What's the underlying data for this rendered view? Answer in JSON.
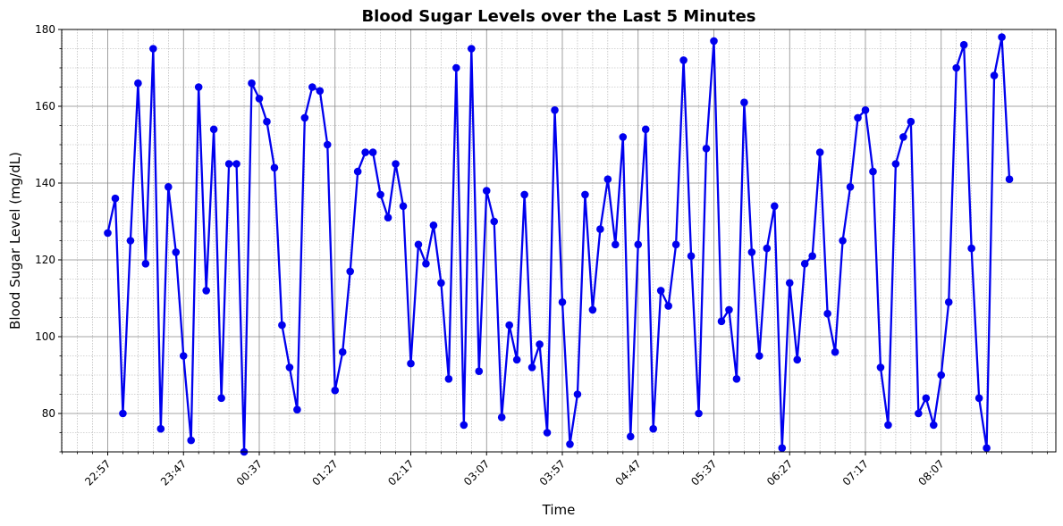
{
  "chart_data": {
    "type": "line",
    "title": "Blood Sugar Levels over the Last 5 Minutes",
    "xlabel": "Time",
    "ylabel": "Blood Sugar Level (mg/dL)",
    "ylim": [
      70,
      180
    ],
    "y_ticks": [
      80,
      100,
      120,
      140,
      160,
      180
    ],
    "x_ticks": [
      "22:57",
      "23:47",
      "00:37",
      "01:27",
      "02:17",
      "03:07",
      "03:57",
      "04:47",
      "05:37",
      "06:27",
      "07:17",
      "08:07"
    ],
    "x_start": "22:57",
    "x_interval_minutes": 5,
    "grid": true,
    "colors": {
      "line": "#0000ee",
      "marker": "#0000ee",
      "major_grid": "#888888",
      "minor_grid": "#aaaaaa"
    },
    "series": [
      {
        "values": [
          127,
          136,
          80,
          125,
          166,
          119,
          175,
          76,
          139,
          122,
          95,
          73,
          165,
          112,
          154,
          84,
          145,
          145,
          70,
          166,
          162,
          156,
          144,
          103,
          92,
          81,
          157,
          165,
          164,
          150,
          86,
          96,
          117,
          143,
          148,
          148,
          137,
          131,
          145,
          134,
          93,
          124,
          119,
          129,
          114,
          89,
          170,
          77,
          175,
          91,
          138,
          130,
          79,
          103,
          94,
          137,
          92,
          98,
          75,
          159,
          109,
          72,
          85,
          137,
          107,
          128,
          141,
          124,
          152,
          74,
          124,
          154,
          76,
          112,
          108,
          124,
          172,
          121,
          80,
          149,
          177,
          104,
          107,
          89,
          161,
          122,
          95,
          123,
          134,
          71,
          114,
          94,
          119,
          121,
          148,
          106,
          96,
          125,
          139,
          157,
          159,
          143,
          92,
          77,
          145,
          152,
          156,
          80,
          84,
          77,
          90,
          109,
          170,
          176,
          123,
          84,
          71,
          168,
          178,
          141
        ]
      }
    ]
  }
}
